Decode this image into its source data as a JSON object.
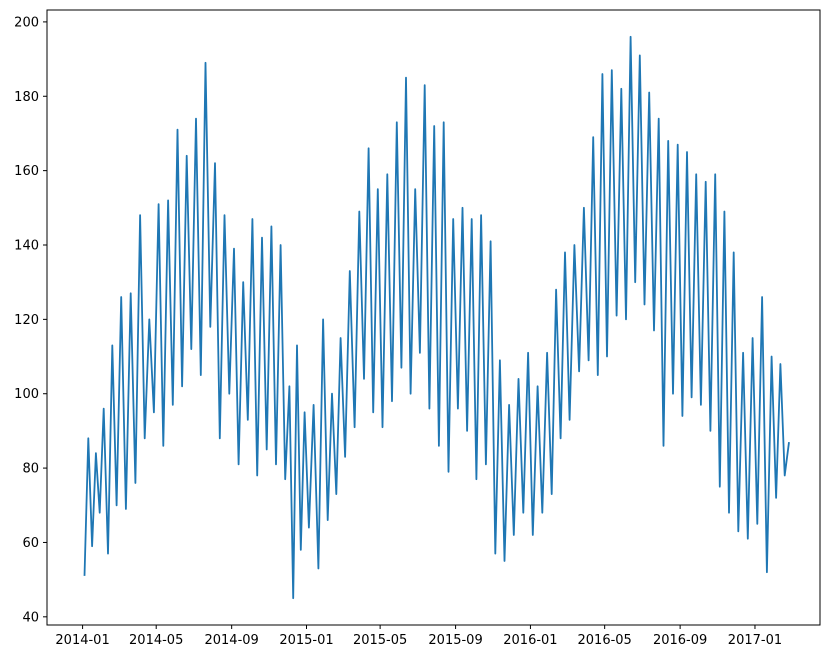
{
  "chart_data": {
    "type": "line",
    "title": "",
    "xlabel": "",
    "ylabel": "",
    "xlim": [
      "2013-11-04",
      "2017-04-17"
    ],
    "ylim": [
      37.8,
      203.2
    ],
    "grid": false,
    "color": "#1f77b4",
    "x_ticks": [
      "2014-01",
      "2014-05",
      "2014-09",
      "2015-01",
      "2015-05",
      "2015-09",
      "2016-01",
      "2016-05",
      "2016-09",
      "2017-01"
    ],
    "y_ticks": [
      40,
      60,
      80,
      100,
      120,
      140,
      160,
      180,
      200
    ],
    "series": [
      {
        "monthly_values": [
          {
            "month": "2014-01",
            "values": [
              51,
              88,
              59,
              84,
              68
            ]
          },
          {
            "month": "2014-02",
            "values": [
              96,
              57,
              113,
              70
            ]
          },
          {
            "month": "2014-03",
            "values": [
              126,
              69,
              127,
              76
            ]
          },
          {
            "month": "2014-04",
            "values": [
              148,
              88,
              120,
              95
            ]
          },
          {
            "month": "2014-05",
            "values": [
              151,
              86,
              152,
              97
            ]
          },
          {
            "month": "2014-06",
            "values": [
              171,
              102,
              164,
              112
            ]
          },
          {
            "month": "2014-07",
            "values": [
              174,
              105,
              189,
              118
            ]
          },
          {
            "month": "2014-08",
            "values": [
              162,
              88,
              148,
              100
            ]
          },
          {
            "month": "2014-09",
            "values": [
              139,
              81,
              130,
              93
            ]
          },
          {
            "month": "2014-10",
            "values": [
              147,
              78,
              142,
              85
            ]
          },
          {
            "month": "2014-11",
            "values": [
              145,
              81,
              140,
              77
            ]
          },
          {
            "month": "2014-12",
            "values": [
              102,
              45,
              113,
              58,
              95
            ]
          },
          {
            "month": "2015-01",
            "values": [
              64,
              97,
              53,
              120
            ]
          },
          {
            "month": "2015-02",
            "values": [
              66,
              100,
              73,
              115
            ]
          },
          {
            "month": "2015-03",
            "values": [
              83,
              133,
              91,
              149
            ]
          },
          {
            "month": "2015-04",
            "values": [
              104,
              166,
              95,
              155
            ]
          },
          {
            "month": "2015-05",
            "values": [
              91,
              159,
              98,
              173
            ]
          },
          {
            "month": "2015-06",
            "values": [
              107,
              185,
              100,
              155
            ]
          },
          {
            "month": "2015-07",
            "values": [
              111,
              183,
              96,
              172
            ]
          },
          {
            "month": "2015-08",
            "values": [
              86,
              173,
              79,
              147
            ]
          },
          {
            "month": "2015-09",
            "values": [
              96,
              150,
              90,
              147
            ]
          },
          {
            "month": "2015-10",
            "values": [
              77,
              148,
              81,
              141
            ]
          },
          {
            "month": "2015-11",
            "values": [
              57,
              109,
              55,
              97
            ]
          },
          {
            "month": "2015-12",
            "values": [
              62,
              104,
              68,
              111
            ]
          },
          {
            "month": "2016-01",
            "values": [
              62,
              102,
              68,
              111
            ]
          },
          {
            "month": "2016-02",
            "values": [
              73,
              128,
              88,
              138
            ]
          },
          {
            "month": "2016-03",
            "values": [
              93,
              140,
              106,
              150
            ]
          },
          {
            "month": "2016-04",
            "values": [
              109,
              169,
              105,
              186
            ]
          },
          {
            "month": "2016-05",
            "values": [
              110,
              187,
              121,
              182
            ]
          },
          {
            "month": "2016-06",
            "values": [
              120,
              196,
              130,
              191
            ]
          },
          {
            "month": "2016-07",
            "values": [
              124,
              181,
              117,
              174
            ]
          },
          {
            "month": "2016-08",
            "values": [
              86,
              168,
              100,
              167
            ]
          },
          {
            "month": "2016-09",
            "values": [
              94,
              165,
              99,
              159
            ]
          },
          {
            "month": "2016-10",
            "values": [
              97,
              157,
              90,
              159
            ]
          },
          {
            "month": "2016-11",
            "values": [
              75,
              149,
              68,
              138
            ]
          },
          {
            "month": "2016-12",
            "values": [
              63,
              111,
              61,
              115
            ]
          },
          {
            "month": "2017-01",
            "values": [
              65,
              126,
              52,
              110
            ]
          },
          {
            "month": "2017-02",
            "values": [
              72,
              108,
              78,
              87
            ]
          }
        ]
      }
    ]
  }
}
